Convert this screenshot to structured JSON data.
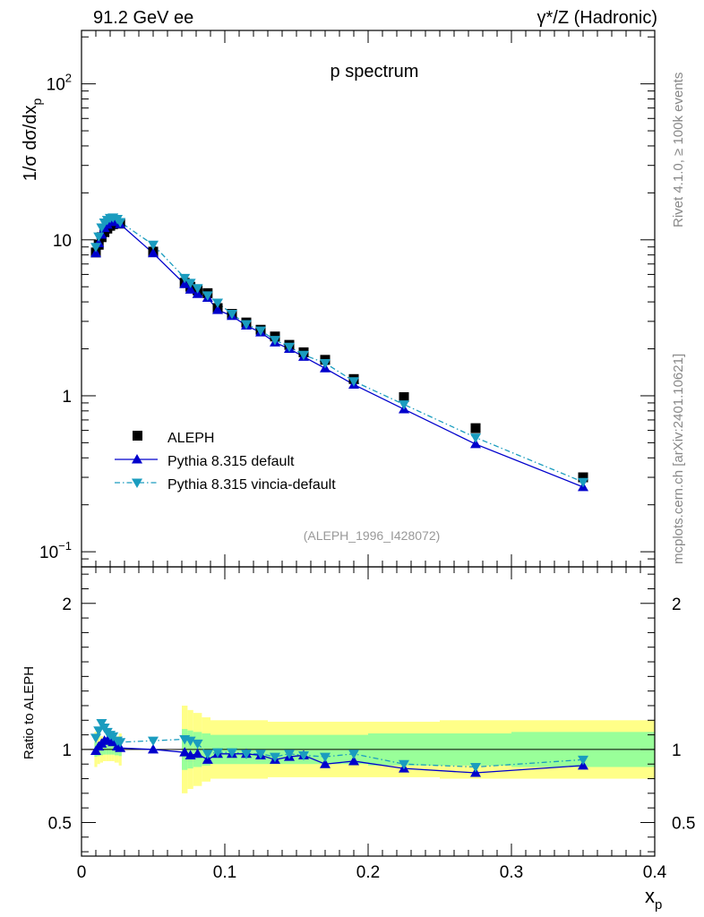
{
  "header": {
    "left": "91.2 GeV ee",
    "right": "γ*/Z (Hadronic)"
  },
  "side_labels": {
    "rivet": "Rivet 4.1.0, ≥ 100k events",
    "source": "mcplots.cern.ch [arXiv:2401.10621]"
  },
  "chart_data": [
    {
      "type": "line",
      "scale": "log",
      "title": "p spectrum",
      "ylabel_main": "1/σ  dσ/dx",
      "ylabel_sub": "p",
      "xlabel_main": "x",
      "xlabel_sub": "p",
      "xlim": [
        0,
        0.4
      ],
      "ylim": [
        0.08,
        220
      ],
      "yticks_major": [
        {
          "value": 0.1,
          "base": "10",
          "exp": "−1"
        },
        {
          "value": 1,
          "base": "1",
          "exp": ""
        },
        {
          "value": 10,
          "base": "10",
          "exp": ""
        },
        {
          "value": 100,
          "base": "10",
          "exp": "2"
        }
      ],
      "analysis_tag": "(ALEPH_1996_I428072)",
      "legend": [
        {
          "name": "ALEPH",
          "color": "#000000",
          "marker": "square"
        },
        {
          "name": "Pythia 8.315 default",
          "color": "#0000cc",
          "marker": "triangle-up"
        },
        {
          "name": "Pythia 8.315 vincia-default",
          "color": "#1a9cbf",
          "marker": "triangle-down"
        }
      ],
      "x": [
        0.01,
        0.012,
        0.014,
        0.016,
        0.018,
        0.02,
        0.022,
        0.025,
        0.027,
        0.05,
        0.072,
        0.076,
        0.081,
        0.088,
        0.095,
        0.105,
        0.115,
        0.125,
        0.135,
        0.145,
        0.155,
        0.17,
        0.19,
        0.225,
        0.275,
        0.35
      ],
      "series": [
        {
          "name": "ALEPH",
          "values": [
            8.3,
            9.3,
            10.4,
            11.2,
            11.8,
            12.3,
            12.6,
            12.8,
            12.7,
            8.4,
            5.3,
            5.0,
            4.75,
            4.55,
            3.65,
            3.35,
            2.95,
            2.65,
            2.4,
            2.12,
            1.9,
            1.7,
            1.28,
            0.98,
            0.62,
            0.3
          ]
        },
        {
          "name": "Pythia 8.315 default",
          "values": [
            8.2,
            9.5,
            10.8,
            11.9,
            12.5,
            13.0,
            13.3,
            13.0,
            12.6,
            8.2,
            5.2,
            4.8,
            4.5,
            4.25,
            3.55,
            3.25,
            2.82,
            2.55,
            2.2,
            2.0,
            1.78,
            1.5,
            1.18,
            0.82,
            0.49,
            0.26
          ]
        },
        {
          "name": "Pythia 8.315 vincia-default",
          "values": [
            9.0,
            10.5,
            12.0,
            12.9,
            13.4,
            13.8,
            13.9,
            13.6,
            13.0,
            9.3,
            5.7,
            5.3,
            4.9,
            4.4,
            3.95,
            3.35,
            2.88,
            2.62,
            2.28,
            2.06,
            1.83,
            1.62,
            1.24,
            0.88,
            0.54,
            0.28
          ]
        }
      ]
    },
    {
      "type": "line",
      "scale": "linear",
      "ylabel": "Ratio to ALEPH",
      "xlim": [
        0,
        0.4
      ],
      "ylim": [
        0.27,
        2.25
      ],
      "yticks_major": [
        {
          "value": 0.5,
          "label": "0.5"
        },
        {
          "value": 1,
          "label": "1"
        },
        {
          "value": 2,
          "label": "2"
        }
      ],
      "xticks_major": [
        {
          "value": 0,
          "label": "0"
        },
        {
          "value": 0.1,
          "label": "0.1"
        },
        {
          "value": 0.2,
          "label": "0.2"
        },
        {
          "value": 0.3,
          "label": "0.3"
        },
        {
          "value": 0.4,
          "label": "0.4"
        }
      ],
      "bands": {
        "edges": [
          0.009,
          0.011,
          0.013,
          0.015,
          0.017,
          0.019,
          0.021,
          0.023,
          0.026,
          0.028,
          0.07,
          0.074,
          0.078,
          0.084,
          0.09,
          0.1,
          0.11,
          0.12,
          0.13,
          0.14,
          0.15,
          0.16,
          0.18,
          0.2,
          0.25,
          0.3,
          0.4
        ],
        "inner": [
          0.05,
          0.045,
          0.04,
          0.035,
          0.035,
          0.035,
          0.035,
          0.04,
          0.045,
          0.0,
          0.14,
          0.13,
          0.12,
          0.11,
          0.1,
          0.1,
          0.1,
          0.1,
          0.1,
          0.1,
          0.1,
          0.1,
          0.1,
          0.11,
          0.11,
          0.12
        ],
        "outer": [
          0.12,
          0.1,
          0.09,
          0.08,
          0.08,
          0.08,
          0.08,
          0.09,
          0.11,
          0.0,
          0.3,
          0.27,
          0.25,
          0.22,
          0.2,
          0.2,
          0.2,
          0.2,
          0.19,
          0.19,
          0.19,
          0.19,
          0.19,
          0.19,
          0.2,
          0.2
        ],
        "inner_color": "#99ff99",
        "outer_color": "#ffff88"
      },
      "series": [
        {
          "name": "Pythia 8.315 default",
          "values": [
            0.99,
            1.02,
            1.04,
            1.06,
            1.06,
            1.06,
            1.05,
            1.02,
            1.01,
            1.0,
            0.98,
            0.96,
            0.97,
            0.93,
            0.97,
            0.97,
            0.97,
            0.96,
            0.93,
            0.95,
            0.96,
            0.9,
            0.92,
            0.87,
            0.84,
            0.89
          ]
        },
        {
          "name": "Pythia 8.315 vincia-default",
          "values": [
            1.08,
            1.13,
            1.18,
            1.15,
            1.12,
            1.1,
            1.09,
            1.06,
            1.05,
            1.06,
            1.07,
            1.06,
            1.04,
            0.97,
            0.98,
            0.98,
            0.97,
            0.97,
            0.95,
            0.97,
            0.96,
            0.95,
            0.97,
            0.9,
            0.88,
            0.93
          ]
        }
      ]
    }
  ]
}
